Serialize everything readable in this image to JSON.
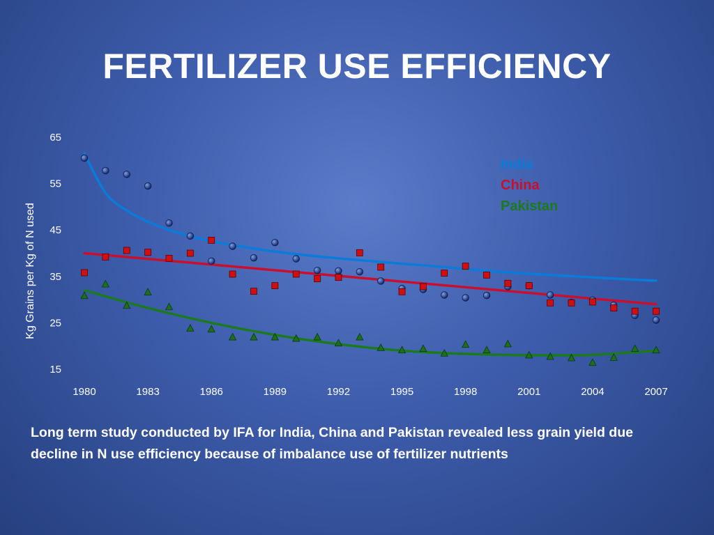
{
  "slide": {
    "title": "FERTILIZER USE EFFICIENCY",
    "caption": "Long term study conducted by IFA for India, China  and Pakistan revealed less  grain  yield due decline in N use efficiency  because of imbalance use of fertilizer nutrients"
  },
  "chart_data": {
    "type": "scatter",
    "title": "",
    "xlabel": "",
    "ylabel": "Kg Grains per Kg of N used",
    "xlim": [
      1980,
      2007
    ],
    "ylim": [
      15,
      65
    ],
    "xticks": [
      1980,
      1983,
      1986,
      1989,
      1992,
      1995,
      1998,
      2001,
      2004,
      2007
    ],
    "yticks": [
      15,
      25,
      35,
      45,
      55,
      65
    ],
    "grid": false,
    "legend": "top-right",
    "series": [
      {
        "name": "India",
        "marker": "circle",
        "color": "#0a7bd8",
        "marker_color": "#1a2f78",
        "x": [
          1980,
          1981,
          1982,
          1983,
          1984,
          1985,
          1986,
          1987,
          1988,
          1989,
          1990,
          1991,
          1992,
          1993,
          1994,
          1995,
          1996,
          1997,
          1998,
          1999,
          2000,
          2001,
          2002,
          2003,
          2004,
          2005,
          2006,
          2007
        ],
        "y": [
          60.5,
          57.8,
          57.0,
          54.5,
          46.5,
          43.7,
          38.3,
          41.5,
          39.0,
          42.3,
          38.8,
          36.3,
          36.2,
          36.0,
          34.0,
          32.4,
          32.2,
          31.0,
          30.4,
          30.9,
          32.8,
          33.0,
          31.0,
          29.4,
          29.9,
          28.8,
          26.6,
          25.6
        ],
        "trend_x": [
          1980,
          1981,
          1982,
          1983,
          1984,
          1985,
          1986,
          1988,
          1990,
          1992,
          1994,
          1996,
          1998,
          2000,
          2002,
          2004,
          2006,
          2007
        ],
        "trend_y": [
          61.5,
          53.0,
          49.2,
          46.8,
          45.0,
          43.7,
          42.6,
          41.0,
          39.8,
          38.9,
          38.1,
          37.4,
          36.6,
          35.9,
          35.3,
          34.8,
          34.3,
          34.1
        ]
      },
      {
        "name": "China",
        "marker": "square",
        "color": "#c8102e",
        "marker_color": "#d01010",
        "x": [
          1980,
          1981,
          1982,
          1983,
          1984,
          1985,
          1986,
          1987,
          1988,
          1989,
          1990,
          1991,
          1992,
          1993,
          1994,
          1995,
          1996,
          1997,
          1998,
          1999,
          2000,
          2001,
          2002,
          2003,
          2004,
          2005,
          2006,
          2007
        ],
        "y": [
          35.8,
          39.2,
          40.6,
          40.2,
          38.9,
          40.0,
          42.8,
          35.5,
          31.8,
          33.0,
          35.5,
          34.5,
          34.8,
          40.1,
          37.0,
          31.7,
          32.8,
          35.7,
          37.2,
          35.3,
          33.5,
          33.0,
          29.3,
          29.3,
          29.5,
          28.2,
          27.5,
          27.5
        ],
        "trend_x": [
          1980,
          2007
        ],
        "trend_y": [
          40.0,
          29.0
        ]
      },
      {
        "name": "Pakistan",
        "marker": "triangle",
        "color": "#1b7a1b",
        "marker_color": "#1e6e1e",
        "x": [
          1980,
          1981,
          1982,
          1983,
          1984,
          1985,
          1986,
          1987,
          1988,
          1989,
          1990,
          1991,
          1992,
          1993,
          1994,
          1995,
          1996,
          1997,
          1998,
          1999,
          2000,
          2001,
          2002,
          2003,
          2004,
          2005,
          2006,
          2007
        ],
        "y": [
          30.8,
          33.3,
          28.7,
          31.6,
          28.4,
          23.8,
          23.6,
          21.9,
          21.9,
          21.9,
          21.6,
          21.9,
          20.6,
          21.9,
          19.6,
          19.1,
          19.4,
          18.4,
          20.3,
          19.1,
          20.4,
          18.0,
          17.7,
          17.4,
          16.4,
          17.5,
          19.4,
          19.1
        ],
        "trend_x": [
          1980,
          1983,
          1986,
          1989,
          1992,
          1995,
          1998,
          2001,
          2004,
          2007
        ],
        "trend_y": [
          32.0,
          28.2,
          25.0,
          22.4,
          20.4,
          19.0,
          18.3,
          18.0,
          18.1,
          19.0
        ]
      }
    ]
  }
}
